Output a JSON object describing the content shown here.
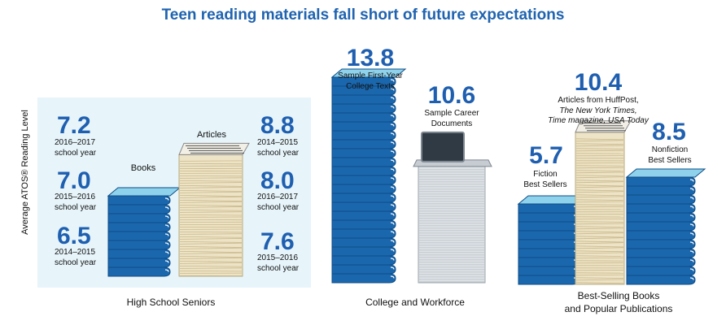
{
  "title": "Teen reading materials fall short of future expectations",
  "colors": {
    "accent": "#1f63b0",
    "book_cover": "#1b67ae",
    "book_top": "#8fd2ec",
    "panel_bg": "#e7f5fb",
    "paper": "#ede3c6"
  },
  "chart_data": {
    "type": "bar",
    "ylabel": "Average ATOS® Reading Level",
    "groups": [
      {
        "label": "High School Seniors",
        "items": [
          {
            "name": "Books",
            "icon": "book-stack-icon",
            "entries": [
              {
                "value": 7.2,
                "period": "2016–2017",
                "unit": "school year"
              },
              {
                "value": 7.0,
                "period": "2015–2016",
                "unit": "school year"
              },
              {
                "value": 6.5,
                "period": "2014–2015",
                "unit": "school year"
              }
            ]
          },
          {
            "name": "Articles",
            "icon": "newspaper-stack-icon",
            "entries": [
              {
                "value": 8.8,
                "period": "2014–2015",
                "unit": "school year"
              },
              {
                "value": 8.0,
                "period": "2016–2017",
                "unit": "school year"
              },
              {
                "value": 7.6,
                "period": "2015–2016",
                "unit": "school year"
              }
            ]
          }
        ]
      },
      {
        "label": "College and Workforce",
        "items": [
          {
            "value": 13.8,
            "label": "Sample First-Year College Texts",
            "icon": "book-stack-icon"
          },
          {
            "value": 10.6,
            "label": "Sample Career Documents",
            "icon": "laptop-paper-stack-icon"
          }
        ]
      },
      {
        "label": "Best-Selling Books and Popular Publications",
        "items": [
          {
            "value": 5.7,
            "label": "Fiction Best Sellers",
            "icon": "book-stack-icon"
          },
          {
            "value": 10.4,
            "label": "Articles from HuffPost, The New York Times, Time magazine, USA Today",
            "icon": "newspaper-stack-icon"
          },
          {
            "value": 8.5,
            "label": "Nonfiction Best Sellers",
            "icon": "book-stack-icon"
          }
        ]
      }
    ]
  },
  "ui": {
    "hs_books_l1": "Books",
    "hs_articles_l1": "Articles",
    "cw_first_l1": "Sample First-Year",
    "cw_first_l2": "College Texts",
    "cw_career_l1": "Sample Career",
    "cw_career_l2": "Documents",
    "bs_fiction_l1": "Fiction",
    "bs_fiction_l2": "Best Sellers",
    "bs_articles_l1": "Articles from HuffPost,",
    "bs_articles_l2": "The New York Times,",
    "bs_articles_l3": "Time magazine, USA Today",
    "bs_nonfic_l1": "Nonfiction",
    "bs_nonfic_l2": "Best Sellers",
    "group3_l1": "Best-Selling Books",
    "group3_l2": "and Popular Publications"
  }
}
